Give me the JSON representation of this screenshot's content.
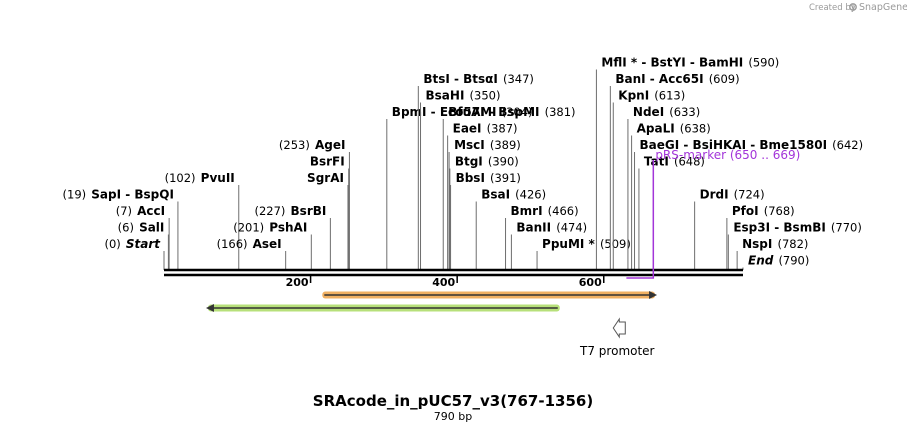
{
  "credit": {
    "prefix": "Created by",
    "brand": "SnapGene"
  },
  "title": "SRAcode_in_pUC57_v3(767-1356)",
  "length_label": "790 bp",
  "colors": {
    "site_line": "#6e6e6e",
    "marker": "#a335d9",
    "orange_feature_fill": "#f0b062",
    "green_feature_fill": "#b7e07a",
    "arrow_dark": "#333333",
    "promoter_stroke": "#555555"
  },
  "chart_data": {
    "type": "sequence-map",
    "sequence_length": 790,
    "ticks": [
      {
        "pos": 200,
        "label": "200"
      },
      {
        "pos": 400,
        "label": "400"
      },
      {
        "pos": 600,
        "label": "600"
      }
    ],
    "sites": [
      {
        "pos": "(0)",
        "name": "Start",
        "bp": 0,
        "row": 0,
        "italic": true
      },
      {
        "pos": "(6)",
        "name": "SalI",
        "bp": 6,
        "row": 1
      },
      {
        "pos": "(7)",
        "name": "AccI",
        "bp": 7,
        "row": 2
      },
      {
        "pos": "(19)",
        "name": "SapI  - BspQI",
        "bp": 19,
        "row": 3
      },
      {
        "pos": "(102)",
        "name": "PvuII",
        "bp": 102,
        "row": 4
      },
      {
        "pos": "(166)",
        "name": "AseI",
        "bp": 166,
        "row": 0
      },
      {
        "pos": "(201)",
        "name": "PshAI",
        "bp": 201,
        "row": 1
      },
      {
        "pos": "(227)",
        "name": "BsrBI",
        "bp": 227,
        "row": 2
      },
      {
        "pos": "",
        "name": "SgrAI",
        "bp": 251,
        "row": 4
      },
      {
        "pos": "",
        "name": "BsrFI",
        "bp": 252,
        "row": 5
      },
      {
        "pos": "(253)",
        "name": "AgeI",
        "bp": 253,
        "row": 6
      },
      {
        "pos": "(304)",
        "name": "BpmI  - Eco57MI",
        "bp": 304,
        "row": 8
      },
      {
        "pos": "(347)",
        "name": "BtsI  - BtsαI",
        "bp": 347,
        "row": 10
      },
      {
        "pos": "(350)",
        "name": "BsaHI",
        "bp": 350,
        "row": 9
      },
      {
        "pos": "(381)",
        "name": "BfuAI  - BspMI",
        "bp": 381,
        "row": 8
      },
      {
        "pos": "(387)",
        "name": "EaeI",
        "bp": 387,
        "row": 7
      },
      {
        "pos": "(389)",
        "name": "MscI",
        "bp": 389,
        "row": 6
      },
      {
        "pos": "(390)",
        "name": "BtgI",
        "bp": 390,
        "row": 5
      },
      {
        "pos": "(391)",
        "name": "BbsI",
        "bp": 391,
        "row": 4
      },
      {
        "pos": "(426)",
        "name": "BsaI",
        "bp": 426,
        "row": 3
      },
      {
        "pos": "(466)",
        "name": "BmrI",
        "bp": 466,
        "row": 2
      },
      {
        "pos": "(474)",
        "name": "BanII",
        "bp": 474,
        "row": 1
      },
      {
        "pos": "(509)",
        "name": "PpuMI *",
        "bp": 509,
        "row": 0
      },
      {
        "pos": "(590)",
        "name": "MflI *  - BstYI  - BamHI",
        "bp": 590,
        "row": 11
      },
      {
        "pos": "(609)",
        "name": "BanI  - Acc65I",
        "bp": 609,
        "row": 10
      },
      {
        "pos": "(613)",
        "name": "KpnI",
        "bp": 613,
        "row": 9
      },
      {
        "pos": "(633)",
        "name": "NdeI",
        "bp": 633,
        "row": 8
      },
      {
        "pos": "(638)",
        "name": "ApaLI",
        "bp": 638,
        "row": 7
      },
      {
        "pos": "(642)",
        "name": "BaeGI  - BsiHKAI  - Bme1580I",
        "bp": 642,
        "row": 6
      },
      {
        "pos": "(648)",
        "name": "TatI",
        "bp": 648,
        "row": 5
      },
      {
        "pos": "(724)",
        "name": "DrdI",
        "bp": 724,
        "row": 3
      },
      {
        "pos": "(768)",
        "name": "PfoI",
        "bp": 768,
        "row": 2
      },
      {
        "pos": "(770)",
        "name": "Esp3I  - BsmBI",
        "bp": 770,
        "row": 1
      },
      {
        "pos": "(782)",
        "name": "NspI",
        "bp": 782,
        "row": 0
      },
      {
        "pos": "(790)",
        "name": "End",
        "bp": 790,
        "row": -1,
        "italic": true
      }
    ],
    "marker": {
      "name": "pRS-marker",
      "range": "(650 .. 669)",
      "start": 650,
      "end": 669
    },
    "features": [
      {
        "name": "orange-feature",
        "start": 216,
        "end": 670,
        "direction": "forward"
      },
      {
        "name": "green-feature",
        "start": 60,
        "end": 540,
        "direction": "reverse"
      }
    ],
    "promoter": {
      "label": "T7 promoter",
      "bp": 613,
      "direction": "reverse"
    }
  }
}
